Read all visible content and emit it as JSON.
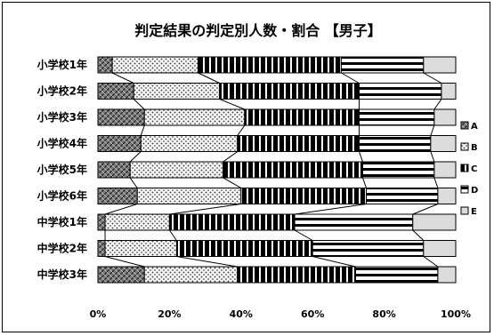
{
  "chart_data": {
    "type": "bar",
    "stacked": true,
    "orientation": "horizontal",
    "title": "判定結果の判定別人数・割合 【男子】",
    "categories": [
      "小学校1年",
      "小学校2年",
      "小学校3年",
      "小学校4年",
      "小学校5年",
      "小学校6年",
      "中学校1年",
      "中学校2年",
      "中学校3年"
    ],
    "series": [
      {
        "name": "A",
        "values": [
          4,
          10,
          13,
          12,
          9,
          11,
          2,
          2,
          13
        ]
      },
      {
        "name": "B",
        "values": [
          24,
          24,
          28,
          27,
          26,
          29,
          18,
          20,
          26
        ]
      },
      {
        "name": "C",
        "values": [
          40,
          39,
          32,
          34,
          39,
          35,
          35,
          38,
          33
        ]
      },
      {
        "name": "D",
        "values": [
          23,
          23,
          21,
          20,
          20,
          20,
          33,
          31,
          23
        ]
      },
      {
        "name": "E",
        "values": [
          9,
          4,
          6,
          7,
          6,
          5,
          12,
          9,
          5
        ]
      }
    ],
    "xlim": [
      0,
      100
    ],
    "x_ticks": [
      "0%",
      "20%",
      "40%",
      "60%",
      "80%",
      "100%"
    ],
    "legend": "right",
    "series_lines": true
  }
}
